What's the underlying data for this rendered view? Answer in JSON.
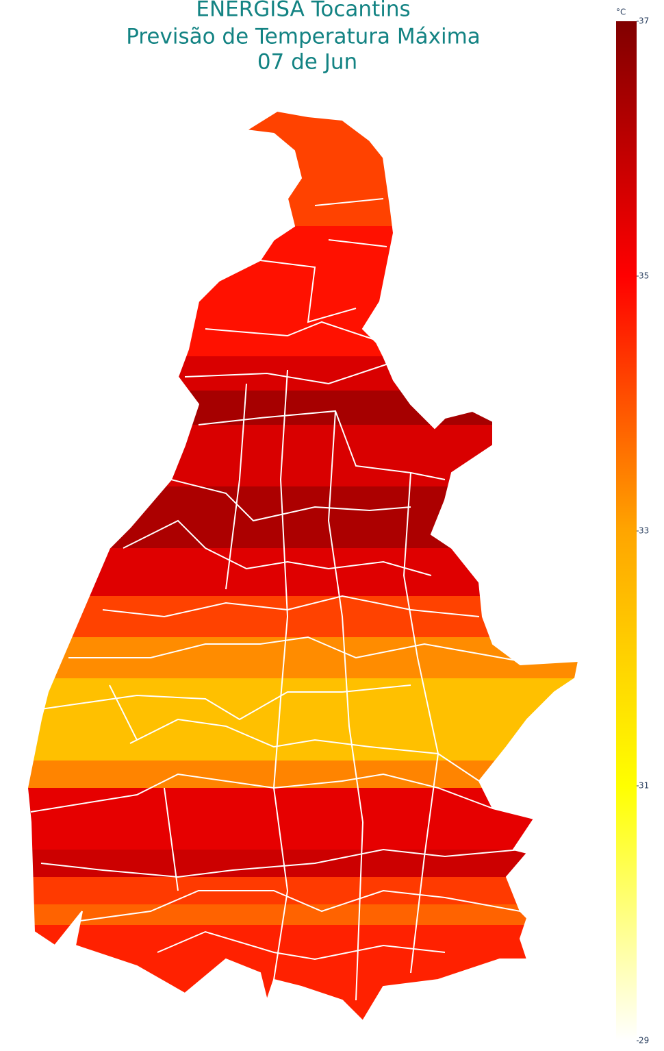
{
  "chart_data": {
    "type": "choropleth",
    "title": [
      "ENERGISA Tocantins",
      "Previsão de Temperatura Máxima",
      "07 de Jun"
    ],
    "colorbar_title": "°C",
    "clim": [
      29,
      37
    ],
    "ticks": [
      29,
      31,
      33,
      35,
      37
    ],
    "colors": [
      "#ffffff",
      "#ffff00",
      "#ffa500",
      "#ff0000",
      "#800000"
    ],
    "zones": [
      34.2,
      34.8,
      35.6,
      36.4,
      35.6,
      36.3,
      35.5,
      34.2,
      33.3,
      32.4,
      33.4,
      35.4,
      35.8,
      34.3,
      33.8,
      34.6
    ]
  }
}
